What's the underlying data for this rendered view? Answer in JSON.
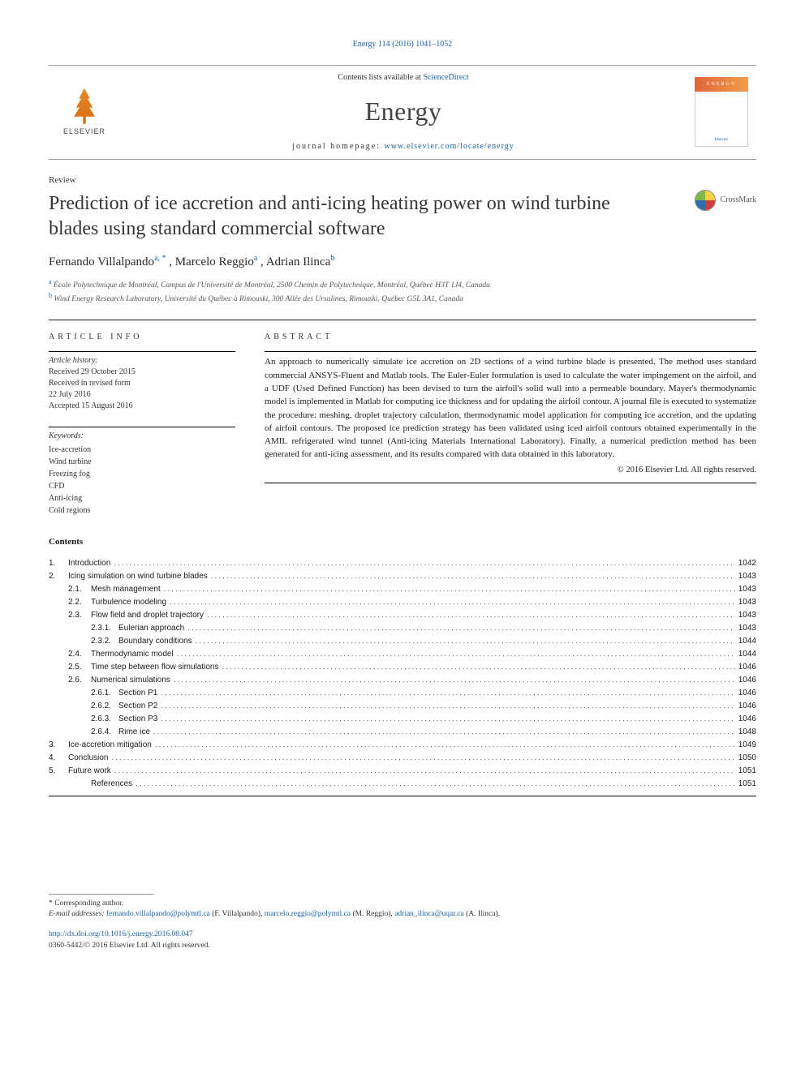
{
  "citation": "Energy 114 (2016) 1041–1052",
  "contents_available": "Contents lists available at ",
  "sciencedirect": "ScienceDirect",
  "journal": "Energy",
  "homepage_label": "journal homepage: ",
  "homepage_url": "www.elsevier.com/locate/energy",
  "publisher": "ELSEVIER",
  "cover_label": "ENERGY",
  "article_type": "Review",
  "title": "Prediction of ice accretion and anti-icing heating power on wind turbine blades using standard commercial software",
  "crossmark": "CrossMark",
  "authors": {
    "a1": "Fernando Villalpando",
    "a1sup": "a, *",
    "a2": ", Marcelo Reggio",
    "a2sup": "a",
    "a3": ", Adrian Ilinca",
    "a3sup": "b"
  },
  "affiliations": {
    "a_sup": "a",
    "a": " École Polytechnique de Montréal, Campus de l'Université de Montréal, 2500 Chemin de Polytechnique, Montréal, Québec H3T 1J4, Canada",
    "b_sup": "b",
    "b": " Wind Energy Research Laboratory, Université du Québec à Rimouski, 300 Allée des Ursulines, Rimouski, Québec G5L 3A1, Canada"
  },
  "article_info_head": "ARTICLE INFO",
  "abstract_head": "ABSTRACT",
  "history": {
    "label": "Article history:",
    "received": "Received 29 October 2015",
    "revised": "Received in revised form",
    "revised_date": "22 July 2016",
    "accepted": "Accepted 15 August 2016"
  },
  "keywords_label": "Keywords:",
  "keywords": [
    "Ice-accretion",
    "Wind turbine",
    "Freezing fog",
    "CFD",
    "Anti-icing",
    "Cold regions"
  ],
  "abstract": "An approach to numerically simulate ice accretion on 2D sections of a wind turbine blade is presented. The method uses standard commercial ANSYS-Fluent and Matlab tools. The Euler-Euler formulation is used to calculate the water impingement on the airfoil, and a UDF (Used Defined Function) has been devised to turn the airfoil's solid wall into a permeable boundary. Mayer's thermodynamic model is implemented in Matlab for computing ice thickness and for updating the airfoil contour. A journal file is executed to systematize the procedure: meshing, droplet trajectory calculation, thermodynamic model application for computing ice accretion, and the updating of airfoil contours. The proposed ice prediction strategy has been validated using iced airfoil contours obtained experimentally in the AMIL refrigerated wind tunnel (Anti-icing Materials International Laboratory). Finally, a numerical prediction method has been generated for anti-icing assessment, and its results compared with data obtained in this laboratory.",
  "copyright": "© 2016 Elsevier Ltd. All rights reserved.",
  "contents_label": "Contents",
  "toc": [
    {
      "lvl": 1,
      "num": "1.",
      "label": "Introduction",
      "page": "1042"
    },
    {
      "lvl": 1,
      "num": "2.",
      "label": "Icing simulation on wind turbine blades",
      "page": "1043"
    },
    {
      "lvl": 2,
      "num": "2.1.",
      "label": "Mesh management",
      "page": "1043"
    },
    {
      "lvl": 2,
      "num": "2.2.",
      "label": "Turbulence modeling",
      "page": "1043"
    },
    {
      "lvl": 2,
      "num": "2.3.",
      "label": "Flow field and droplet trajectory",
      "page": "1043"
    },
    {
      "lvl": 3,
      "num": "2.3.1.",
      "label": "Eulerian approach",
      "page": "1043"
    },
    {
      "lvl": 3,
      "num": "2.3.2.",
      "label": "Boundary conditions",
      "page": "1044"
    },
    {
      "lvl": 2,
      "num": "2.4.",
      "label": "Thermodynamic model",
      "page": "1044"
    },
    {
      "lvl": 2,
      "num": "2.5.",
      "label": "Time step between flow simulations",
      "page": "1046"
    },
    {
      "lvl": 2,
      "num": "2.6.",
      "label": "Numerical simulations",
      "page": "1046"
    },
    {
      "lvl": 3,
      "num": "2.6.1.",
      "label": "Section P1",
      "page": "1046"
    },
    {
      "lvl": 3,
      "num": "2.6.2.",
      "label": "Section P2",
      "page": "1046"
    },
    {
      "lvl": 3,
      "num": "2.6.3.",
      "label": "Section P3",
      "page": "1046"
    },
    {
      "lvl": 3,
      "num": "2.6.4.",
      "label": "Rime ice",
      "page": "1048"
    },
    {
      "lvl": 1,
      "num": "3.",
      "label": "Ice-accretion mitigation",
      "page": "1049"
    },
    {
      "lvl": 1,
      "num": "4.",
      "label": "Conclusion",
      "page": "1050"
    },
    {
      "lvl": 1,
      "num": "5.",
      "label": "Future work",
      "page": "1051"
    },
    {
      "lvl": 1,
      "num": "",
      "label": "References",
      "page": "1051"
    }
  ],
  "footer": {
    "corresponding": "* Corresponding author.",
    "email_label": "E-mail addresses: ",
    "e1": "fernando.villalpando@polymtl.ca",
    "e1n": " (F. Villalpando), ",
    "e2": "marcelo.reggio@polymtl.ca",
    "e2n": " (M. Reggio), ",
    "e3": "adrian_ilinca@uqar.ca",
    "e3n": " (A. Ilinca).",
    "doi": "http://dx.doi.org/10.1016/j.energy.2016.08.047",
    "issn": "0360-5442/© 2016 Elsevier Ltd. All rights reserved."
  },
  "colors": {
    "link": "#1a62a9",
    "text": "#1a1a1a",
    "accent": "#e0673a"
  }
}
